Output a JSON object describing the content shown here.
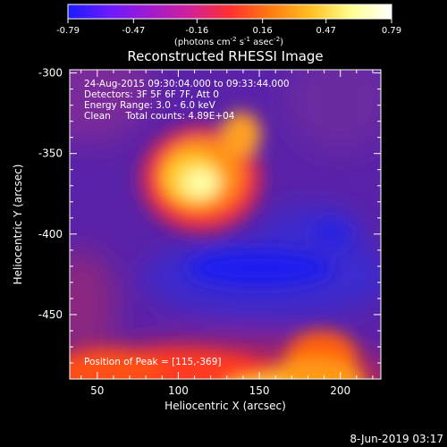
{
  "colorbar": {
    "tick_labels": [
      "-0.79",
      "-0.47",
      "-0.16",
      "0.16",
      "0.47",
      "0.79"
    ],
    "tick_values": [
      -0.79,
      -0.47,
      -0.16,
      0.16,
      0.47,
      0.79
    ],
    "range": [
      -0.79,
      0.79
    ],
    "units_pre": "(photons cm",
    "units_exp1": "-2",
    "units_mid": " s",
    "units_exp2": "-1",
    "units_post": " asec",
    "units_exp3": "-2",
    "units_close": ")",
    "stops": [
      "#1a1aff",
      "#6a1aff",
      "#a01ad0",
      "#d0209a",
      "#ff3030",
      "#ff7a10",
      "#ffc020",
      "#ffff90",
      "#ffffff"
    ]
  },
  "chart_data": {
    "type": "heatmap",
    "title": "Reconstructed RHESSI Image",
    "xlabel": "Heliocentric X (arcsec)",
    "ylabel": "Heliocentric Y (arcsec)",
    "xlim": [
      33,
      225
    ],
    "ylim": [
      -490,
      -298
    ],
    "x_ticks": [
      50,
      100,
      150,
      200
    ],
    "y_ticks": [
      -300,
      -350,
      -400,
      -450
    ],
    "x_tick_labels": [
      "50",
      "100",
      "150",
      "200"
    ],
    "y_tick_labels": [
      "-300",
      "-350",
      "-400",
      "-450"
    ],
    "peak": [
      115,
      -369
    ],
    "features": [
      {
        "kind": "bright_source",
        "x": 120,
        "y": -360,
        "value": 0.79
      },
      {
        "kind": "negative_trough",
        "x": 150,
        "y": -418,
        "value": -0.79
      },
      {
        "kind": "bright_band_lower_edge",
        "x": 150,
        "y": -488,
        "value": 0.55
      }
    ],
    "annotations": [
      "24-Aug-2015 09:30:04.000 to 09:33:44.000",
      "Detectors: 3F 5F 6F 7F, Att 0",
      "Energy Range: 3.0 - 6.0 keV",
      "Clean     Total counts: 4.89E+04"
    ],
    "peak_label": "Position of Peak = [115,-369]"
  },
  "footer": {
    "timestamp": "8-Jun-2019 03:17"
  }
}
